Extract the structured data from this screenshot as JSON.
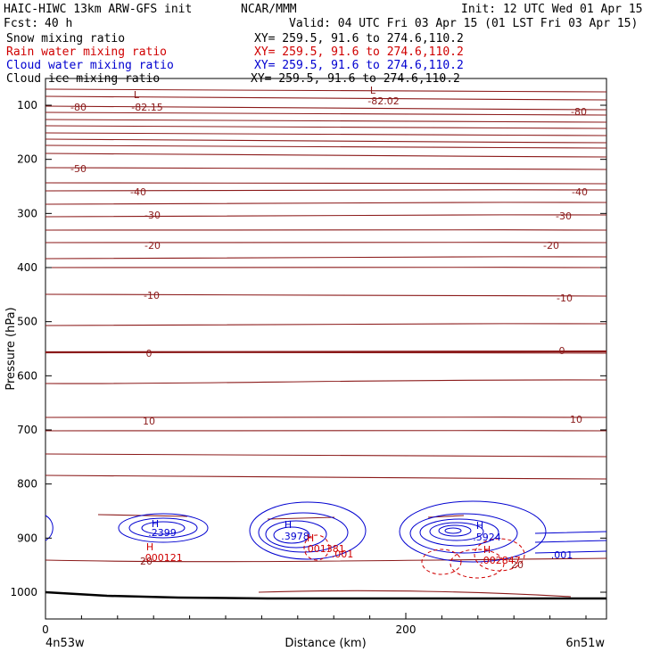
{
  "header": {
    "model": "HAIC-HIWC 13km ARW-GFS init",
    "org": "NCAR/MMM",
    "init": "Init: 12 UTC Wed 01 Apr 15",
    "fcst_label": "Fcst:",
    "fcst_value": "40 h",
    "valid": "Valid: 04 UTC Fri 03 Apr 15 (01 LST Fri 03 Apr 15)",
    "fields": [
      {
        "name": "Snow mixing ratio",
        "xy": "XY= 259.5, 91.6 to 274.6,110.2",
        "color": "#000000"
      },
      {
        "name": "Rain water mixing ratio",
        "xy": "XY= 259.5, 91.6 to 274.6,110.2",
        "color": "#d00000"
      },
      {
        "name": "Cloud water mixing ratio",
        "xy": "XY= 259.5, 91.6 to 274.6,110.2",
        "color": "#0000d0"
      },
      {
        "name": "Cloud ice mixing ratio",
        "xy": "XY= 259.5, 91.6 to 274.6,110.2",
        "color": "#000000"
      }
    ]
  },
  "chart_data": {
    "type": "contour cross-section",
    "xlabel": "Distance (km)",
    "ylabel": "Pressure (hPa)",
    "x_ticks": [
      0,
      200
    ],
    "y_ticks": [
      100,
      200,
      300,
      400,
      500,
      600,
      700,
      800,
      900,
      1000
    ],
    "xlim": [
      0,
      310
    ],
    "ylim": [
      1050,
      50
    ],
    "endpoint_left": "4n53w",
    "endpoint_right": "6n51w",
    "temperature_contour_labels": [
      "-80",
      "-50",
      "-40",
      "-30",
      "-20",
      "-10",
      "0",
      "10",
      "20"
    ],
    "temperature_extrema": [
      {
        "type": "L",
        "value": "-82.15"
      },
      {
        "type": "L",
        "value": "-82.02"
      }
    ],
    "cloud_water_maxima": [
      {
        "type": "H",
        "value": ".2399"
      },
      {
        "type": "H",
        "value": ".3978"
      },
      {
        "type": "H",
        "value": ".5924"
      }
    ],
    "cloud_water_contour_labels": [
      ".001"
    ],
    "rain_water_maxima": [
      {
        "type": "H",
        "value": ".000121"
      },
      {
        "type": "H",
        "value": ".001381"
      },
      {
        "type": "H",
        "value": ".002847"
      }
    ],
    "rain_water_contour_labels": [
      ".001"
    ],
    "colors": {
      "temperature": "#8b1a1a",
      "cloud_water": "#0000d0",
      "rain_water": "#d00000",
      "terrain": "#000000"
    }
  }
}
